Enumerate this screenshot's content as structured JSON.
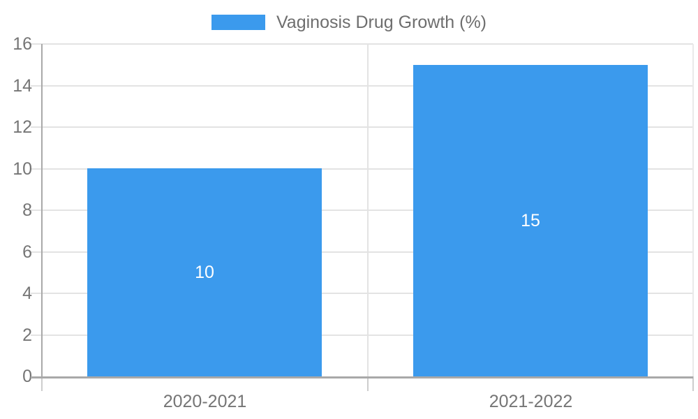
{
  "chart_data": {
    "type": "bar",
    "title": "Vaginosis Drug Growth (%)",
    "legend_position": "top",
    "categories": [
      "2020-2021",
      "2021-2022"
    ],
    "series": [
      {
        "name": "Vaginosis Drug Growth (%)",
        "values": [
          10,
          15
        ]
      }
    ],
    "bar_labels": [
      "10",
      "15"
    ],
    "xlabel": "",
    "ylabel": "",
    "ylim": [
      0,
      16
    ],
    "ytick_step": 2,
    "ytick_labels": [
      "0",
      "2",
      "4",
      "6",
      "8",
      "10",
      "12",
      "14",
      "16"
    ],
    "grid": true,
    "colors": {
      "bar": "#3B9AED",
      "bar_label_text": "#FFFFFF",
      "gridline": "#E3E3E3",
      "boundary_line": "#E9E9E9",
      "axis_line": "#A9A9A9",
      "axis_tick": "#CDCDCD",
      "tick_label_text": "#757575",
      "legend_text": "#6E6E6E",
      "background": "#FFFFFF"
    }
  }
}
